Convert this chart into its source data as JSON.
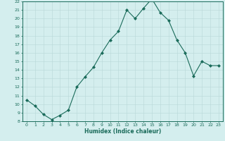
{
  "title": "",
  "xlabel": "Humidex (Indice chaleur)",
  "ylabel": "",
  "x": [
    0,
    1,
    2,
    3,
    4,
    5,
    6,
    7,
    8,
    9,
    10,
    11,
    12,
    13,
    14,
    15,
    16,
    17,
    18,
    19,
    20,
    21,
    22,
    23
  ],
  "y": [
    10.5,
    9.8,
    8.8,
    8.2,
    8.7,
    9.3,
    12.0,
    13.2,
    14.3,
    16.0,
    17.5,
    18.5,
    21.0,
    20.0,
    21.2,
    22.3,
    20.7,
    19.8,
    17.5,
    16.0,
    13.3,
    15.0,
    14.5,
    14.5
  ],
  "line_color": "#1a6b5a",
  "marker_color": "#1a6b5a",
  "bg_color": "#d4eeee",
  "grid_color": "#b8d8d8",
  "axis_color": "#1a6b5a",
  "tick_color": "#1a6b5a",
  "ylim": [
    8,
    22
  ],
  "xlim": [
    -0.5,
    23.5
  ],
  "yticks": [
    8,
    9,
    10,
    11,
    12,
    13,
    14,
    15,
    16,
    17,
    18,
    19,
    20,
    21,
    22
  ],
  "xticks": [
    0,
    1,
    2,
    3,
    4,
    5,
    6,
    7,
    8,
    9,
    10,
    11,
    12,
    13,
    14,
    15,
    16,
    17,
    18,
    19,
    20,
    21,
    22,
    23
  ]
}
